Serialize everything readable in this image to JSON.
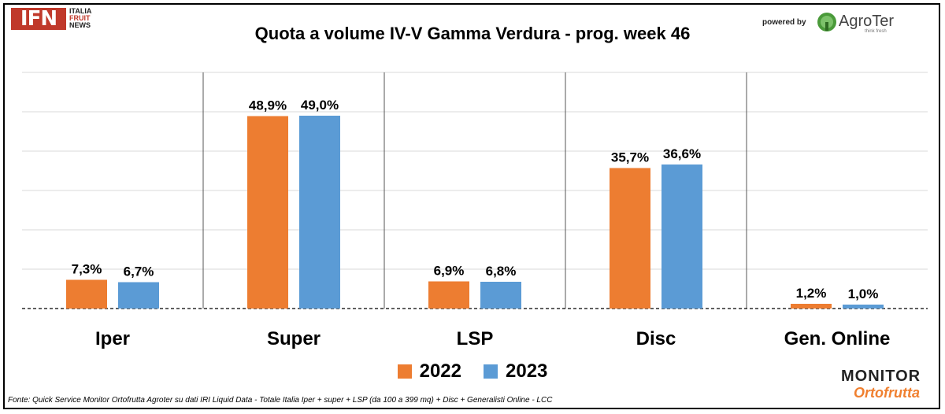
{
  "header": {
    "logo_main": "IFN",
    "logo_sub": [
      "ITALIA",
      "FRUIT",
      "NEWS"
    ],
    "powered_by": "powered by",
    "partner_logo": "AgroTer",
    "partner_tagline": "think fresh"
  },
  "chart_data": {
    "type": "bar",
    "title": "Quota a volume IV-V Gamma Verdura - prog. week 46",
    "categories": [
      "Iper",
      "Super",
      "LSP",
      "Disc",
      "Gen. Online"
    ],
    "series": [
      {
        "name": "2022",
        "values": [
          7.3,
          48.9,
          6.9,
          35.7,
          1.2
        ],
        "labels": [
          "7,3%",
          "48,9%",
          "6,9%",
          "35,7%",
          "1,2%"
        ],
        "color": "#ED7D31"
      },
      {
        "name": "2023",
        "values": [
          6.7,
          49.0,
          6.8,
          36.6,
          1.0
        ],
        "labels": [
          "6,7%",
          "49,0%",
          "6,8%",
          "36,6%",
          "1,0%"
        ],
        "color": "#5B9BD5"
      }
    ],
    "ylim": [
      0,
      60
    ],
    "grid": true,
    "legend": "bottom"
  },
  "footer": {
    "source": "Fonte: Quick Service Monitor Ortofrutta Agroter su dati IRI Liquid Data - Totale Italia Iper + super + LSP (da 100 a 399 mq) + Disc + Generalisti Online - LCC",
    "brand_line1": "MONITOR",
    "brand_line2": "Ortofrutta"
  }
}
